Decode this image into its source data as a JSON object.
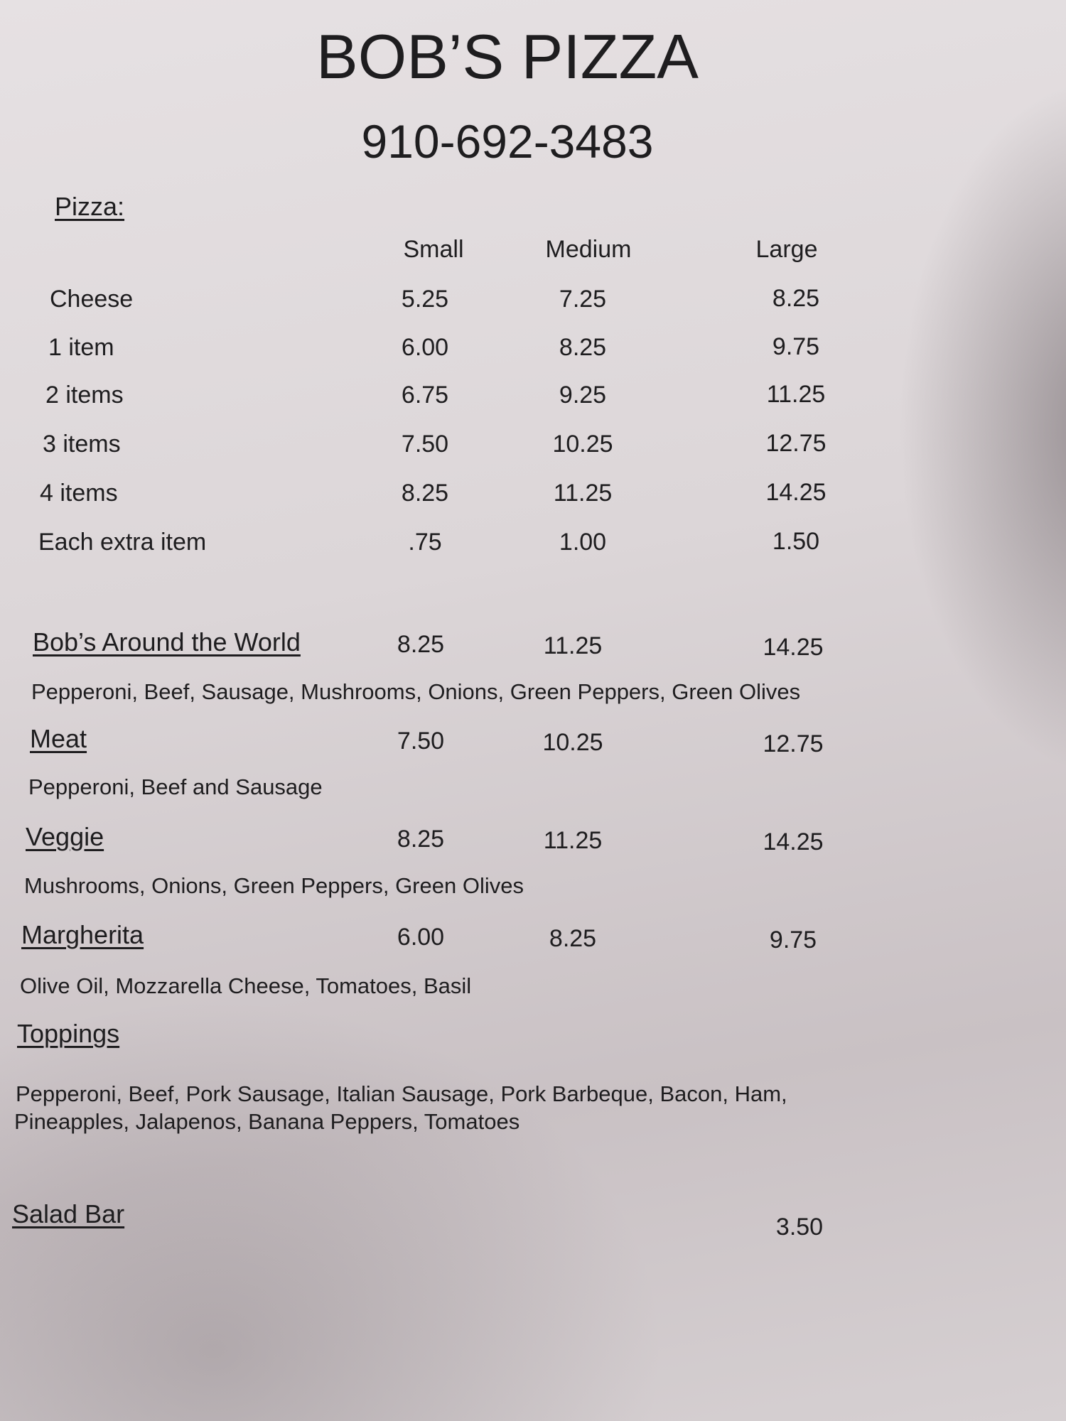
{
  "header": {
    "title": "BOB’S PIZZA",
    "phone": "910-692-3483"
  },
  "pizza": {
    "section_label": "Pizza:",
    "sizes": [
      "Small",
      "Medium",
      "Large"
    ],
    "rows": [
      {
        "label": "Cheese",
        "prices": [
          "5.25",
          "7.25",
          "8.25"
        ]
      },
      {
        "label": "1 item",
        "prices": [
          "6.00",
          "8.25",
          "9.75"
        ]
      },
      {
        "label": "2 items",
        "prices": [
          "6.75",
          "9.25",
          "11.25"
        ]
      },
      {
        "label": "3 items",
        "prices": [
          "7.50",
          "10.25",
          "12.75"
        ]
      },
      {
        "label": "4 items",
        "prices": [
          "8.25",
          "11.25",
          "14.25"
        ]
      },
      {
        "label": "Each extra item",
        "prices": [
          ".75",
          "1.00",
          "1.50"
        ]
      }
    ]
  },
  "specialties": [
    {
      "name": "Bob’s Around the World",
      "prices": [
        "8.25",
        "11.25",
        "14.25"
      ],
      "description": "Pepperoni, Beef, Sausage, Mushrooms, Onions, Green Peppers, Green Olives"
    },
    {
      "name": "Meat",
      "prices": [
        "7.50",
        "10.25",
        "12.75"
      ],
      "description": "Pepperoni, Beef and Sausage"
    },
    {
      "name": "Veggie",
      "prices": [
        "8.25",
        "11.25",
        "14.25"
      ],
      "description": "Mushrooms, Onions, Green Peppers, Green Olives"
    },
    {
      "name": "Margherita",
      "prices": [
        "6.00",
        "8.25",
        "9.75"
      ],
      "description": "Olive Oil, Mozzarella Cheese, Tomatoes, Basil"
    }
  ],
  "toppings": {
    "label": "Toppings",
    "line1": "Pepperoni, Beef, Pork Sausage, Italian Sausage, Pork Barbeque, Bacon, Ham,",
    "line2": "Pineapples, Jalapenos, Banana Peppers, Tomatoes"
  },
  "salad_bar": {
    "label": "Salad Bar",
    "price": "3.50"
  }
}
